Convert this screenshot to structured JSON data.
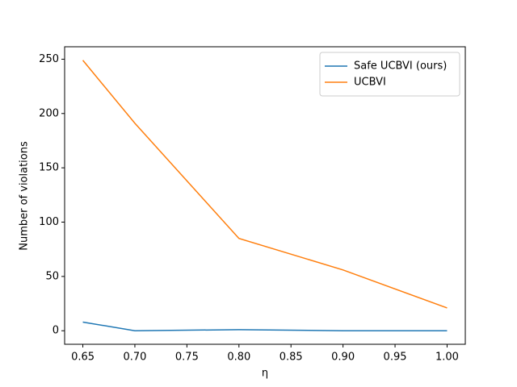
{
  "chart_data": {
    "type": "line",
    "x": [
      0.65,
      0.7,
      0.8,
      0.9,
      1.0
    ],
    "series": [
      {
        "name": "Safe UCBVI (ours)",
        "color": "#1f77b4",
        "values": [
          8,
          0,
          1,
          0,
          0
        ]
      },
      {
        "name": "UCBVI",
        "color": "#ff7f0e",
        "values": [
          249,
          191,
          85,
          56,
          21
        ]
      }
    ],
    "xlabel": "η",
    "ylabel": "Number of violations",
    "xlim": [
      0.6325,
      1.0175
    ],
    "ylim": [
      -12.45,
      261.45
    ],
    "xticks": [
      0.65,
      {
        "value": 0.7,
        "label": "0.70"
      },
      0.75,
      {
        "value": 0.8,
        "label": "0.80"
      },
      0.85,
      {
        "value": 0.9,
        "label": "0.90"
      },
      0.95,
      {
        "value": 1.0,
        "label": "1.00"
      }
    ],
    "yticks": [
      0,
      50,
      100,
      150,
      200,
      250
    ],
    "legend": "upper right",
    "grid": false
  }
}
